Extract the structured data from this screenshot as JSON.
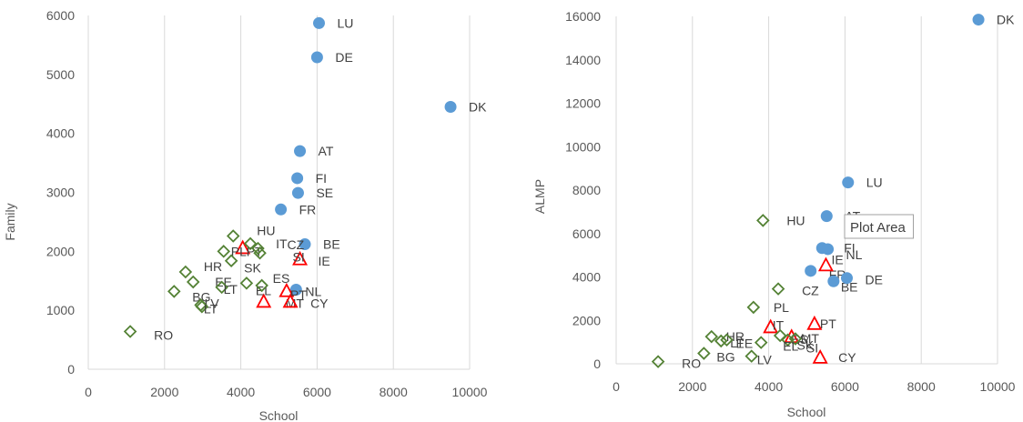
{
  "chart_data": [
    {
      "type": "scatter",
      "xlabel": "School",
      "ylabel": "Family",
      "xlim": [
        0,
        10000
      ],
      "ylim": [
        0,
        6000
      ],
      "xticks": [
        0,
        2000,
        4000,
        6000,
        8000,
        10000
      ],
      "yticks": [
        0,
        1000,
        2000,
        3000,
        4000,
        5000,
        6000
      ],
      "grid": "vertical",
      "colors": {
        "circle": "#5b9bd5",
        "triangle": "#ff0000",
        "diamond": "#548235"
      },
      "series": [
        {
          "marker": "circle",
          "points": [
            {
              "label": "LU",
              "x": 6050,
              "y": 5870
            },
            {
              "label": "DE",
              "x": 6000,
              "y": 5290
            },
            {
              "label": "DK",
              "x": 9500,
              "y": 4450
            },
            {
              "label": "AT",
              "x": 5550,
              "y": 3700
            },
            {
              "label": "FI",
              "x": 5480,
              "y": 3240
            },
            {
              "label": "SE",
              "x": 5500,
              "y": 2990
            },
            {
              "label": "FR",
              "x": 5050,
              "y": 2710
            },
            {
              "label": "BE",
              "x": 5680,
              "y": 2120
            },
            {
              "label": "NL",
              "x": 5450,
              "y": 1350
            }
          ]
        },
        {
          "marker": "triangle",
          "points": [
            {
              "label": "PT",
              "x": 4050,
              "y": 2060
            },
            {
              "label": "IE",
              "x": 5550,
              "y": 1870
            },
            {
              "label": "PT",
              "x": 5200,
              "y": 1330
            },
            {
              "label": "MT",
              "x": 4600,
              "y": 1150
            },
            {
              "label": "CY",
              "x": 5300,
              "y": 1150
            }
          ]
        },
        {
          "marker": "diamond",
          "points": [
            {
              "label": "HU",
              "x": 3800,
              "y": 2260
            },
            {
              "label": "IT",
              "x": 4250,
              "y": 2130
            },
            {
              "label": "CZ",
              "x": 4450,
              "y": 2050
            },
            {
              "label": "SI",
              "x": 4500,
              "y": 1970
            },
            {
              "label": "PL",
              "x": 3550,
              "y": 2000
            },
            {
              "label": "SK",
              "x": 3750,
              "y": 1840
            },
            {
              "label": "HR",
              "x": 2550,
              "y": 1650
            },
            {
              "label": "EE",
              "x": 2750,
              "y": 1480
            },
            {
              "label": "EL",
              "x": 4150,
              "y": 1460
            },
            {
              "label": "ES",
              "x": 4550,
              "y": 1420
            },
            {
              "label": "BG",
              "x": 2250,
              "y": 1320
            },
            {
              "label": "LT",
              "x": 3500,
              "y": 1390
            },
            {
              "label": "LV",
              "x": 2950,
              "y": 1090
            },
            {
              "label": "LT",
              "x": 2980,
              "y": 1060
            },
            {
              "label": "RO",
              "x": 1100,
              "y": 640
            }
          ]
        }
      ]
    },
    {
      "type": "scatter",
      "xlabel": "School",
      "ylabel": "ALMP",
      "xlim": [
        0,
        10000
      ],
      "ylim": [
        0,
        16000
      ],
      "xticks": [
        0,
        2000,
        4000,
        6000,
        8000,
        10000
      ],
      "yticks": [
        0,
        2000,
        4000,
        6000,
        8000,
        10000,
        12000,
        14000,
        16000
      ],
      "grid": "vertical",
      "colors": {
        "circle": "#5b9bd5",
        "triangle": "#ff0000",
        "diamond": "#548235"
      },
      "tooltip": "Plot Area",
      "series": [
        {
          "marker": "circle",
          "points": [
            {
              "label": "DK",
              "x": 9500,
              "y": 15850
            },
            {
              "label": "LU",
              "x": 6080,
              "y": 8350
            },
            {
              "label": "AT",
              "x": 5520,
              "y": 6800
            },
            {
              "label": "FI",
              "x": 5400,
              "y": 5330
            },
            {
              "label": "NL",
              "x": 5550,
              "y": 5280
            },
            {
              "label": "FR",
              "x": 5100,
              "y": 4280
            },
            {
              "label": "BE",
              "x": 5700,
              "y": 3800
            },
            {
              "label": "DE",
              "x": 6050,
              "y": 3950
            }
          ]
        },
        {
          "marker": "triangle",
          "points": [
            {
              "label": "IE",
              "x": 5500,
              "y": 4550
            },
            {
              "label": "PT",
              "x": 5200,
              "y": 1850
            },
            {
              "label": "IT",
              "x": 4050,
              "y": 1700
            },
            {
              "label": "MT",
              "x": 4600,
              "y": 1250
            },
            {
              "label": "CY",
              "x": 5350,
              "y": 300
            }
          ]
        },
        {
          "marker": "diamond",
          "points": [
            {
              "label": "HU",
              "x": 3850,
              "y": 6600
            },
            {
              "label": "CZ",
              "x": 4250,
              "y": 3450
            },
            {
              "label": "PL",
              "x": 3600,
              "y": 2600
            },
            {
              "label": "ES",
              "x": 4300,
              "y": 1300
            },
            {
              "label": "SK",
              "x": 4500,
              "y": 1100
            },
            {
              "label": "SI",
              "x": 4700,
              "y": 1150
            },
            {
              "label": "HR",
              "x": 2500,
              "y": 1250
            },
            {
              "label": "LT",
              "x": 2750,
              "y": 1050
            },
            {
              "label": "EE",
              "x": 2900,
              "y": 1100
            },
            {
              "label": "EL",
              "x": 3800,
              "y": 980
            },
            {
              "label": "BG",
              "x": 2300,
              "y": 480
            },
            {
              "label": "LV",
              "x": 3550,
              "y": 350
            },
            {
              "label": "RO",
              "x": 1100,
              "y": 100
            }
          ]
        }
      ]
    }
  ]
}
